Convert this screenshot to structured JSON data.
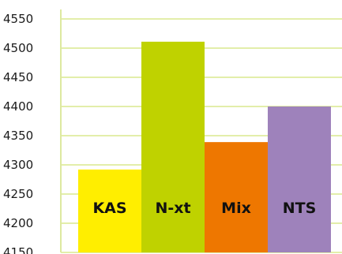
{
  "chart_data": {
    "type": "bar",
    "title": "",
    "xlabel": "",
    "ylabel": "",
    "categories": [
      "KAS",
      "N-xt",
      "Mix",
      "NTS"
    ],
    "values": [
      4292,
      4511,
      4339,
      4400
    ],
    "colors": [
      "#ffee00",
      "#bfd200",
      "#ee7700",
      "#9e82bb"
    ],
    "ylim": [
      4150,
      4550
    ],
    "yticks": [
      4150,
      4200,
      4250,
      4300,
      4350,
      4400,
      4450,
      4500,
      4550
    ],
    "ytick_labels": [
      "4150",
      "4200",
      "4250",
      "4300",
      "4350",
      "4400",
      "4450",
      "4500",
      "4550"
    ],
    "grid": true,
    "grid_color": "#e3eeaa",
    "axis_color": "#dde9a0",
    "legend": "none"
  }
}
